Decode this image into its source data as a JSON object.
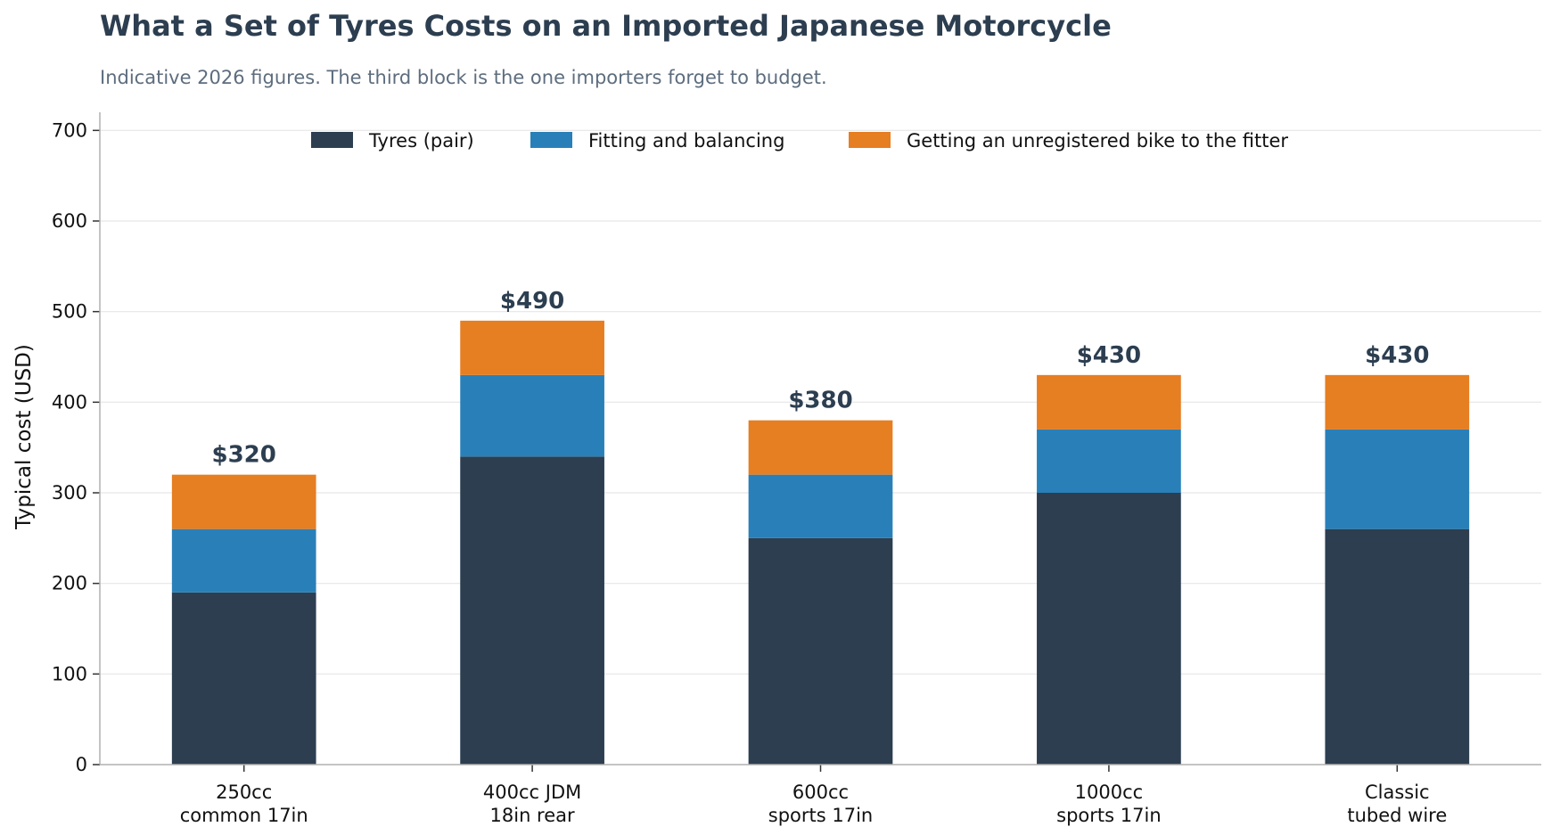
{
  "chart_data": {
    "type": "bar",
    "stacked": true,
    "title": "What a Set of Tyres Costs on an Imported Japanese Motorcycle",
    "subtitle": "Indicative 2026 figures. The third block is the one importers forget to budget.",
    "xlabel": "",
    "ylabel": "Typical cost (USD)",
    "ylim": [
      0,
      720
    ],
    "yticks": [
      0,
      100,
      200,
      300,
      400,
      500,
      600,
      700
    ],
    "grid": "horizontal",
    "legend_position": "top-center",
    "categories": [
      [
        "250cc",
        "common 17in"
      ],
      [
        "400cc JDM",
        "18in rear"
      ],
      [
        "600cc",
        "sports 17in"
      ],
      [
        "1000cc",
        "sports 17in"
      ],
      [
        "Classic",
        "tubed wire"
      ]
    ],
    "series": [
      {
        "name": "Tyres (pair)",
        "color": "#2c3e50",
        "values": [
          190,
          340,
          250,
          300,
          260
        ]
      },
      {
        "name": "Fitting and balancing",
        "color": "#2980b9",
        "values": [
          70,
          90,
          70,
          70,
          110
        ]
      },
      {
        "name": "Getting an unregistered bike to the fitter",
        "color": "#e67e22",
        "values": [
          60,
          60,
          60,
          60,
          60
        ]
      }
    ],
    "totals": [
      "$320",
      "$490",
      "$380",
      "$430",
      "$430"
    ]
  }
}
